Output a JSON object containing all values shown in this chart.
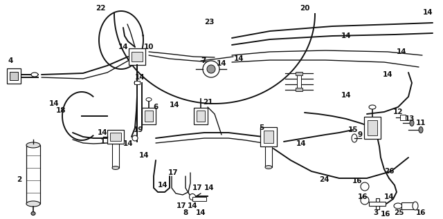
{
  "bg_color": "#ffffff",
  "line_color": "#111111",
  "fig_width": 6.4,
  "fig_height": 3.17,
  "dpi": 100
}
